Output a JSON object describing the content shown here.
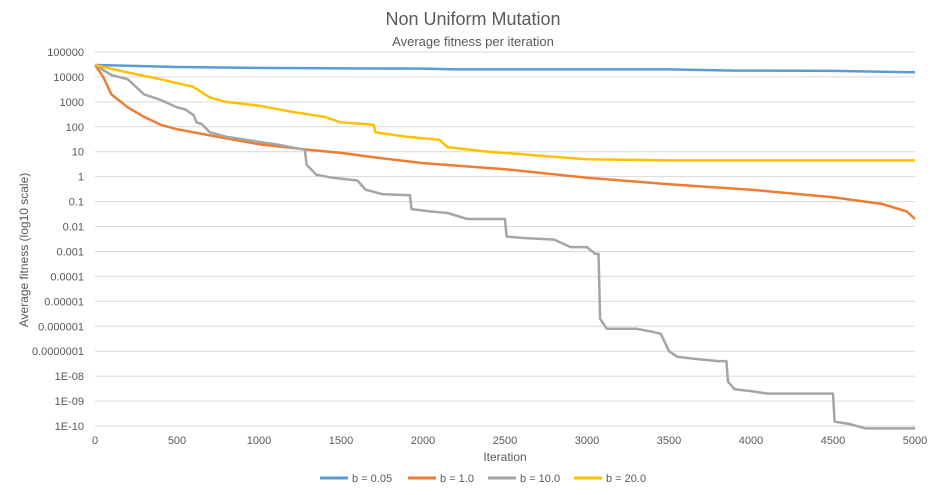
{
  "chart_data": {
    "type": "line",
    "title": "Non Uniform Mutation",
    "subtitle": "Average fitness per iteration",
    "xlabel": "Iteration",
    "ylabel": "Average fitness (log10 scale)",
    "y_scale": "log10",
    "grid": "horizontal",
    "legend_position": "bottom",
    "xlim": [
      0,
      5000
    ],
    "ylim": [
      1e-10,
      100000
    ],
    "x_ticks": [
      0,
      500,
      1000,
      1500,
      2000,
      2500,
      3000,
      3500,
      4000,
      4500,
      5000
    ],
    "x_tick_labels": [
      "0",
      "500",
      "1000",
      "1500",
      "2000",
      "2500",
      "3000",
      "3500",
      "4000",
      "4500",
      "5000"
    ],
    "y_ticks": [
      100000,
      10000,
      1000,
      100,
      10,
      1,
      0.1,
      0.01,
      0.001,
      0.0001,
      1e-05,
      1e-06,
      1e-07,
      1e-08,
      1e-09,
      1e-10
    ],
    "y_tick_labels": [
      "100000",
      "10000",
      "1000",
      "100",
      "10",
      "1",
      "0.1",
      "0.01",
      "0.001",
      "0.0001",
      "0.00001",
      "0.000001",
      "0.0000001",
      "1E-08",
      "1E-09",
      "1E-10"
    ],
    "series": [
      {
        "name": "b = 0.05",
        "color": "#5B9BD5",
        "points": [
          [
            0,
            30000
          ],
          [
            200,
            28000
          ],
          [
            500,
            25000
          ],
          [
            1000,
            23000
          ],
          [
            1500,
            22000
          ],
          [
            2000,
            21500
          ],
          [
            2200,
            20000
          ],
          [
            3000,
            20000
          ],
          [
            3500,
            20000
          ],
          [
            3900,
            18000
          ],
          [
            4500,
            17500
          ],
          [
            4800,
            16000
          ],
          [
            5000,
            15500
          ]
        ]
      },
      {
        "name": "b = 1.0",
        "color": "#ED7D31",
        "points": [
          [
            0,
            30000
          ],
          [
            50,
            10000
          ],
          [
            100,
            2000
          ],
          [
            200,
            600
          ],
          [
            300,
            250
          ],
          [
            400,
            120
          ],
          [
            500,
            80
          ],
          [
            700,
            45
          ],
          [
            1000,
            20
          ],
          [
            1300,
            12
          ],
          [
            1500,
            9
          ],
          [
            1700,
            6
          ],
          [
            2000,
            3.5
          ],
          [
            2500,
            2
          ],
          [
            3000,
            0.9
          ],
          [
            3500,
            0.5
          ],
          [
            4000,
            0.3
          ],
          [
            4500,
            0.15
          ],
          [
            4800,
            0.08
          ],
          [
            4950,
            0.04
          ],
          [
            5000,
            0.02
          ]
        ]
      },
      {
        "name": "b = 10.0",
        "color": "#A5A5A5",
        "points": [
          [
            0,
            30000
          ],
          [
            100,
            12000
          ],
          [
            200,
            8000
          ],
          [
            300,
            2000
          ],
          [
            400,
            1200
          ],
          [
            500,
            600
          ],
          [
            550,
            500
          ],
          [
            600,
            300
          ],
          [
            620,
            150
          ],
          [
            650,
            130
          ],
          [
            700,
            60
          ],
          [
            800,
            40
          ],
          [
            1000,
            25
          ],
          [
            1100,
            20
          ],
          [
            1200,
            15
          ],
          [
            1280,
            12
          ],
          [
            1290,
            3
          ],
          [
            1350,
            1.2
          ],
          [
            1450,
            0.9
          ],
          [
            1600,
            0.7
          ],
          [
            1650,
            0.3
          ],
          [
            1750,
            0.2
          ],
          [
            1920,
            0.18
          ],
          [
            1930,
            0.05
          ],
          [
            2050,
            0.04
          ],
          [
            2150,
            0.035
          ],
          [
            2270,
            0.02
          ],
          [
            2500,
            0.02
          ],
          [
            2510,
            0.004
          ],
          [
            2600,
            0.0035
          ],
          [
            2800,
            0.003
          ],
          [
            2900,
            0.0015
          ],
          [
            3000,
            0.0015
          ],
          [
            3050,
            0.0008
          ],
          [
            3070,
            0.0008
          ],
          [
            3080,
            2e-06
          ],
          [
            3120,
            8e-07
          ],
          [
            3300,
            8e-07
          ],
          [
            3400,
            6e-07
          ],
          [
            3450,
            5e-07
          ],
          [
            3500,
            1e-07
          ],
          [
            3550,
            6e-08
          ],
          [
            3650,
            5e-08
          ],
          [
            3800,
            4e-08
          ],
          [
            3850,
            4e-08
          ],
          [
            3860,
            6e-09
          ],
          [
            3900,
            3e-09
          ],
          [
            4000,
            2.5e-09
          ],
          [
            4100,
            2e-09
          ],
          [
            4500,
            2e-09
          ],
          [
            4510,
            1.5e-10
          ],
          [
            4600,
            1.2e-10
          ],
          [
            4700,
            8e-11
          ],
          [
            4800,
            8e-11
          ],
          [
            5000,
            8e-11
          ]
        ]
      },
      {
        "name": "b = 20.0",
        "color": "#FFC000",
        "points": [
          [
            0,
            30000
          ],
          [
            200,
            15000
          ],
          [
            400,
            8000
          ],
          [
            600,
            4000
          ],
          [
            700,
            1500
          ],
          [
            800,
            1000
          ],
          [
            1000,
            700
          ],
          [
            1200,
            400
          ],
          [
            1400,
            250
          ],
          [
            1500,
            150
          ],
          [
            1700,
            120
          ],
          [
            1710,
            60
          ],
          [
            1900,
            40
          ],
          [
            2100,
            30
          ],
          [
            2150,
            15
          ],
          [
            2400,
            10
          ],
          [
            2600,
            8
          ],
          [
            2700,
            7
          ],
          [
            3000,
            5
          ],
          [
            3500,
            4.5
          ],
          [
            4000,
            4.5
          ],
          [
            5000,
            4.5
          ]
        ]
      }
    ]
  }
}
